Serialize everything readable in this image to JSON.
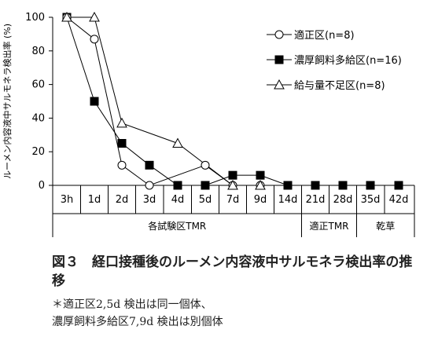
{
  "chart_data": {
    "type": "line",
    "ylabel": "ルーメン内容液中サルモネラ検出率 (%)",
    "ylim": [
      0,
      100
    ],
    "yticks": [
      0,
      20,
      40,
      60,
      80,
      100
    ],
    "categories": [
      "3h",
      "1d",
      "2d",
      "3d",
      "4d",
      "5d",
      "7d",
      "9d",
      "14d",
      "21d",
      "28d",
      "35d",
      "42d"
    ],
    "groups": [
      {
        "label": "各試験区TMR",
        "from": 0,
        "to": 8
      },
      {
        "label": "適正TMR",
        "from": 9,
        "to": 10
      },
      {
        "label": "乾草",
        "from": 11,
        "to": 12
      }
    ],
    "series": [
      {
        "name": "適正区(n=8)",
        "marker": "circle-open",
        "color": "#000000",
        "values": [
          100,
          87,
          12,
          0,
          null,
          12,
          0,
          0,
          null,
          null,
          null,
          null,
          null
        ]
      },
      {
        "name": "濃厚飼料多給区(n=16)",
        "marker": "square-filled",
        "color": "#000000",
        "values": [
          100,
          50,
          25,
          12,
          0,
          0,
          6,
          6,
          0,
          0,
          0,
          0,
          0
        ]
      },
      {
        "name": "給与量不足区(n=8)",
        "marker": "triangle-open",
        "color": "#000000",
        "values": [
          100,
          100,
          37,
          null,
          25,
          null,
          0,
          0,
          null,
          null,
          null,
          null,
          null
        ]
      }
    ],
    "legend_position": "top-right"
  },
  "caption": {
    "title": "図３　経口接種後のルーメン内容液中サルモネラ検出率の推移",
    "note1": "＊適正区2,5d 検出は同一個体、",
    "note2": "濃厚飼料多給区7,9d 検出は別個体"
  }
}
